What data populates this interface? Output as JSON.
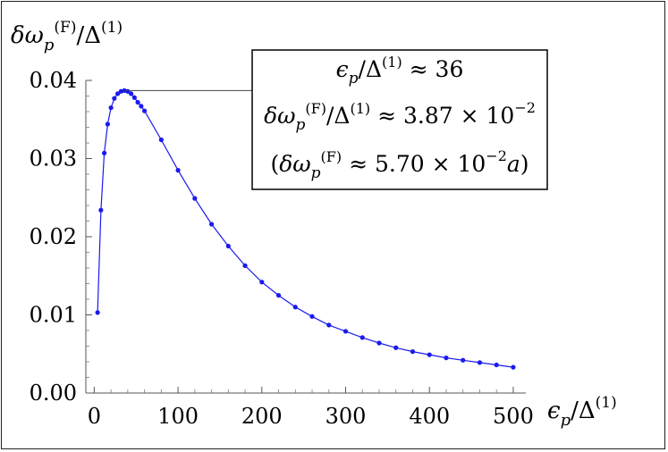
{
  "chart_data": {
    "type": "line",
    "xlabel": "ε_p/Δ^(1)",
    "ylabel": "δω_p^(F)/Δ^(1)",
    "xlim": [
      -10,
      515
    ],
    "ylim": [
      0,
      0.04
    ],
    "x_ticks": [
      0,
      100,
      200,
      300,
      400,
      500
    ],
    "x_tick_labels": [
      "0",
      "100",
      "200",
      "300",
      "400",
      "500"
    ],
    "y_ticks": [
      0,
      0.01,
      0.02,
      0.03,
      0.04
    ],
    "y_tick_labels": [
      "0.00",
      "0.01",
      "0.02",
      "0.03",
      "0.04"
    ],
    "marker": "dot",
    "color": "#1a1aee",
    "series": [
      {
        "x": [
          4,
          8,
          12,
          16,
          20,
          24,
          28,
          32,
          36,
          40,
          44,
          48,
          52,
          56,
          60,
          80,
          100,
          120,
          140,
          160,
          180,
          200,
          220,
          240,
          260,
          280,
          300,
          320,
          340,
          360,
          380,
          400,
          420,
          440,
          460,
          480,
          500
        ],
        "values": [
          0.0103,
          0.0234,
          0.0307,
          0.0344,
          0.0365,
          0.0377,
          0.0383,
          0.0386,
          0.0387,
          0.0386,
          0.0383,
          0.0378,
          0.0372,
          0.0367,
          0.0361,
          0.0324,
          0.0285,
          0.0249,
          0.0216,
          0.0188,
          0.0163,
          0.0142,
          0.0125,
          0.011,
          0.0098,
          0.0087,
          0.0079,
          0.0071,
          0.0064,
          0.0058,
          0.0053,
          0.0049,
          0.0045,
          0.0042,
          0.0039,
          0.0036,
          0.0033
        ]
      }
    ],
    "annotation": {
      "lines": [
        "ε_p/Δ^(1) ≈ 36",
        "δω_p^(F)/Δ^(1) ≈ 3.87 × 10^−2",
        "(δω_p^(F) ≈ 5.70 × 10^−2 a)"
      ],
      "points_to": {
        "x": 36,
        "y": 0.0387
      }
    }
  }
}
